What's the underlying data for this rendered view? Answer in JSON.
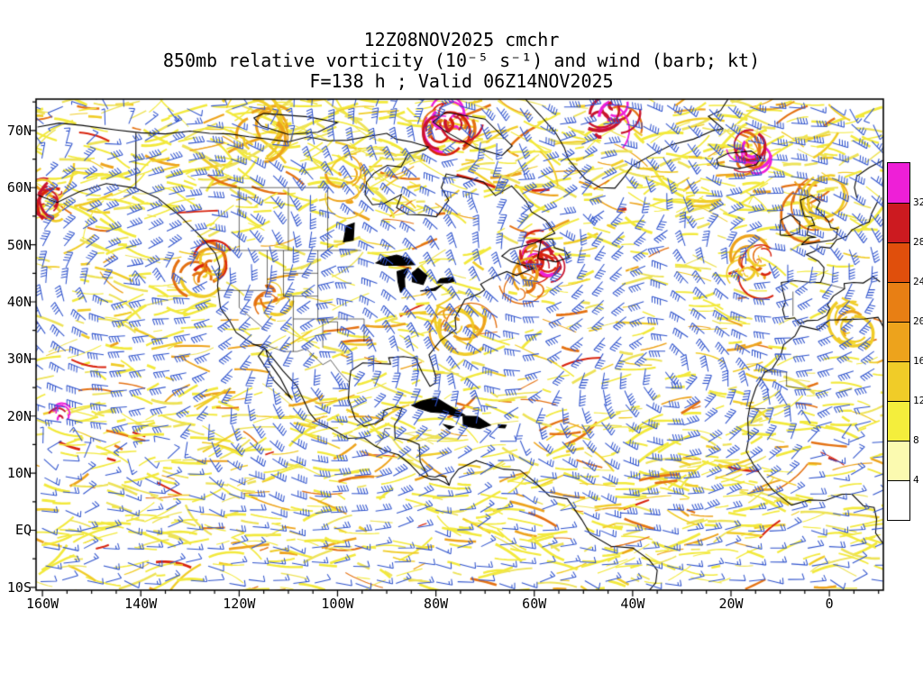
{
  "title": {
    "line1": "12Z08NOV2025 cmchr",
    "line2": "850mb relative vorticity (10⁻⁵ s⁻¹) and wind (barb; kt)",
    "line3": "F=138 h ; Valid 06Z14NOV2025"
  },
  "map": {
    "lat_ticks": [
      {
        "label": "70N",
        "value": 70
      },
      {
        "label": "60N",
        "value": 60
      },
      {
        "label": "50N",
        "value": 50
      },
      {
        "label": "40N",
        "value": 40
      },
      {
        "label": "30N",
        "value": 30
      },
      {
        "label": "20N",
        "value": 20
      },
      {
        "label": "10N",
        "value": 10
      },
      {
        "label": "EQ",
        "value": 0
      },
      {
        "label": "10S",
        "value": -10
      }
    ],
    "lon_ticks": [
      {
        "label": "160W",
        "value": -160
      },
      {
        "label": "140W",
        "value": -140
      },
      {
        "label": "120W",
        "value": -120
      },
      {
        "label": "100W",
        "value": -100
      },
      {
        "label": "80W",
        "value": -80
      },
      {
        "label": "60W",
        "value": -60
      },
      {
        "label": "40W",
        "value": -40
      },
      {
        "label": "20W",
        "value": -20
      },
      {
        "label": "0",
        "value": 0
      }
    ]
  },
  "colorbar": {
    "labels_top_to_bottom": [
      "32",
      "28",
      "24",
      "20",
      "16",
      "12",
      "8",
      "4"
    ],
    "colors_bottom_to_top": [
      "#ffffff",
      "#fbfab0",
      "#f4ee3c",
      "#f0cc28",
      "#eda31c",
      "#e87f14",
      "#e04f0c",
      "#cc1a20",
      "#ee1fd7"
    ]
  },
  "styles": {
    "barb_color": "#2e52cc",
    "coast_color": "#000000",
    "background": "#ffffff"
  },
  "chart_data": {
    "type": "heatmap",
    "title": "850mb relative vorticity (10⁻⁵ s⁻¹) and wind (barb; kt)",
    "model_run": "12Z08NOV2025",
    "model": "cmchr",
    "forecast": "F=138 h",
    "valid": "06Z14NOV2025",
    "x_tick_labels": [
      "160W",
      "140W",
      "120W",
      "100W",
      "80W",
      "60W",
      "40W",
      "20W",
      "0"
    ],
    "y_tick_labels": [
      "70N",
      "60N",
      "50N",
      "40N",
      "30N",
      "20N",
      "10N",
      "EQ",
      "10S"
    ],
    "colorbar_levels": [
      4,
      8,
      12,
      16,
      20,
      24,
      28,
      32
    ],
    "colorbar_units": "10⁻⁵ s⁻¹",
    "wind_units": "kt",
    "legend_position": "right",
    "grid": false
  }
}
